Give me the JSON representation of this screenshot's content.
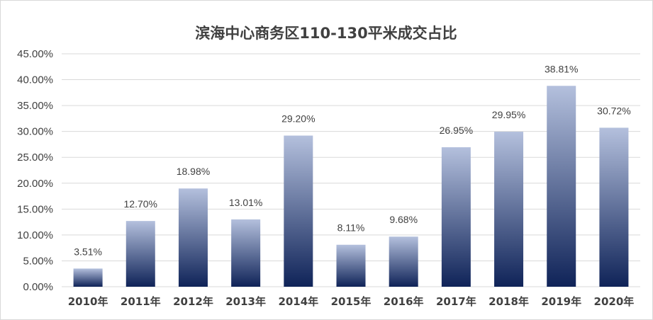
{
  "chart_data": {
    "type": "bar",
    "title": "滨海中心商务区110-130平米成交占比",
    "xlabel": "",
    "ylabel": "",
    "categories": [
      "2010年",
      "2011年",
      "2012年",
      "2013年",
      "2014年",
      "2015年",
      "2016年",
      "2017年",
      "2018年",
      "2019年",
      "2020年"
    ],
    "values": [
      3.51,
      12.7,
      18.98,
      13.01,
      29.2,
      8.11,
      9.68,
      26.95,
      29.95,
      38.81,
      30.72
    ],
    "value_labels": [
      "3.51%",
      "12.70%",
      "18.98%",
      "13.01%",
      "29.20%",
      "8.11%",
      "9.68%",
      "26.95%",
      "29.95%",
      "38.81%",
      "30.72%"
    ],
    "ylim": [
      0,
      45
    ],
    "yticks": [
      0,
      5,
      10,
      15,
      20,
      25,
      30,
      35,
      40,
      45
    ],
    "ytick_labels": [
      "0.00%",
      "5.00%",
      "10.00%",
      "15.00%",
      "20.00%",
      "25.00%",
      "30.00%",
      "35.00%",
      "40.00%",
      "45.00%"
    ],
    "grid": true,
    "legend": "none",
    "colors": {
      "bar_top": "#b4c0dd",
      "bar_bottom": "#0f2358",
      "grid": "#d9d9d9",
      "text": "#404040"
    }
  }
}
